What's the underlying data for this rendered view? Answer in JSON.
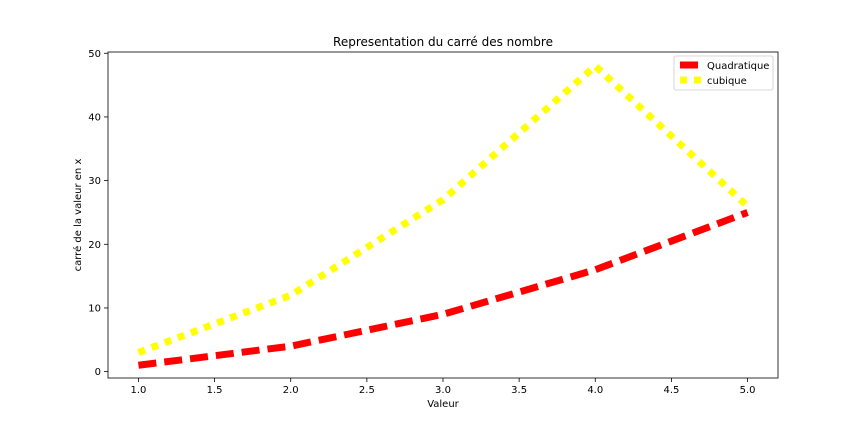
{
  "chart_data": {
    "type": "line",
    "title": "Representation du carré des nombre",
    "xlabel": "Valeur",
    "ylabel": "carré de la valeur en x",
    "xlim": [
      0.8,
      5.2
    ],
    "ylim": [
      -1,
      50.2
    ],
    "xticks": [
      "1.0",
      "1.5",
      "2.0",
      "2.5",
      "3.0",
      "3.5",
      "4.0",
      "4.5",
      "5.0"
    ],
    "yticks": [
      "0",
      "10",
      "20",
      "30",
      "40",
      "50"
    ],
    "grid": false,
    "legend_position": "top-right",
    "series": [
      {
        "name": "Quadratique",
        "color": "#ff0000",
        "style": "dashed",
        "x": [
          1,
          2,
          3,
          4,
          5
        ],
        "y": [
          1,
          4,
          9,
          16,
          25
        ]
      },
      {
        "name": "cubique",
        "color": "#ffff00",
        "style": "dotted",
        "x": [
          1,
          2,
          3,
          4,
          5
        ],
        "y": [
          3,
          12,
          27,
          48,
          26
        ]
      }
    ]
  }
}
